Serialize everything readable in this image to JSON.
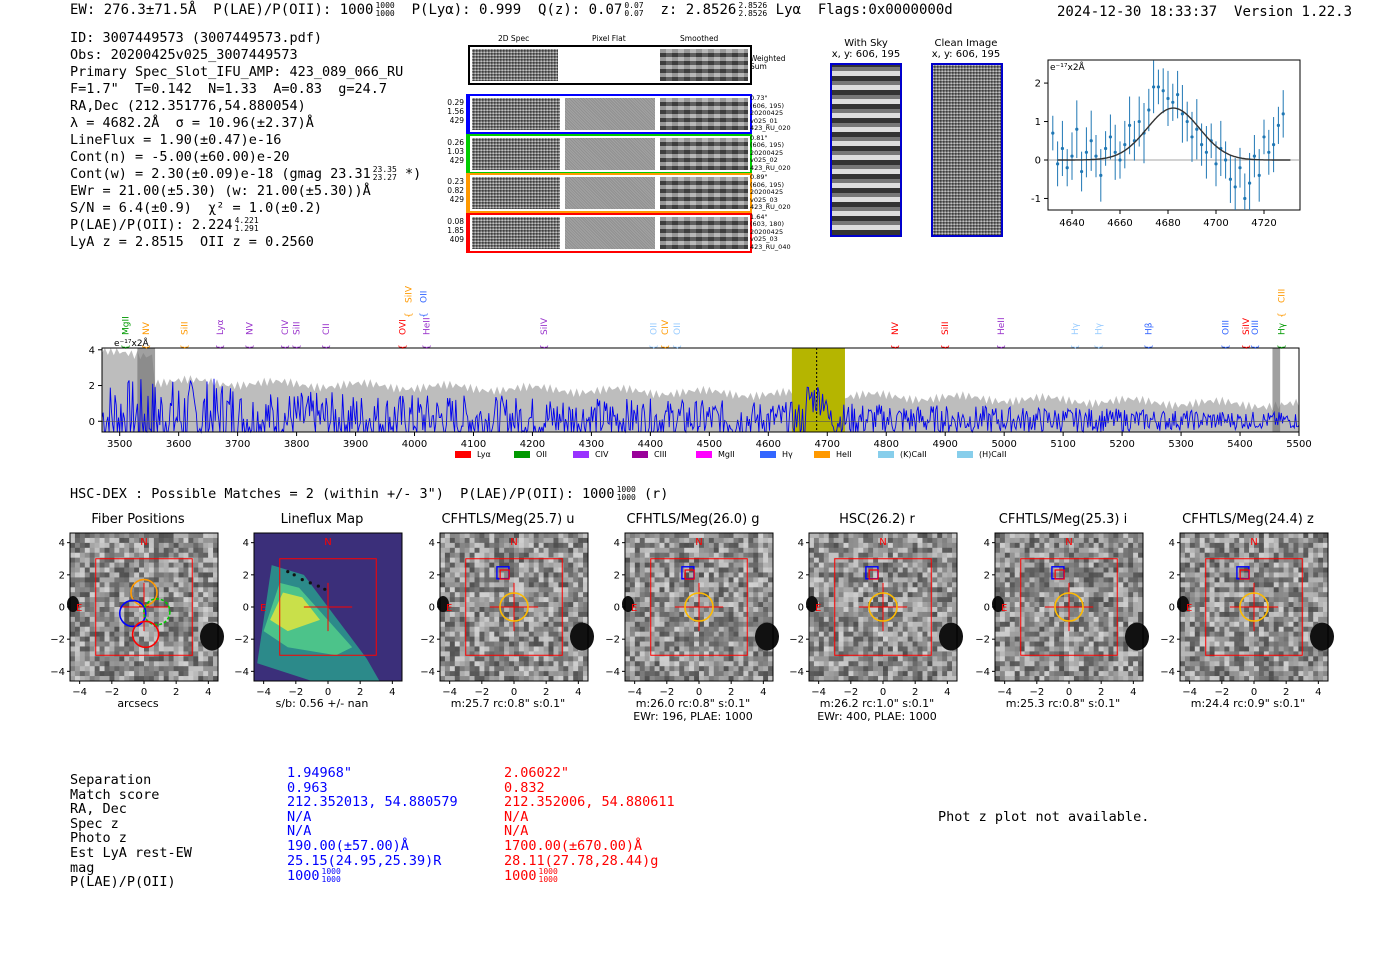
{
  "header": {
    "ew": "EW: 276.3±71.5Å",
    "plae_label": "P(LAE)/P(OII):",
    "plae_val": "1000",
    "plae_hi": "1000",
    "plae_lo": "1000",
    "plya": "P(Lyα): 0.999",
    "qz_label": "Q(z): 0.07",
    "qz_hi": "0.07",
    "qz_lo": "0.07",
    "z_label": "z: 2.8526",
    "z_hi": "2.8526",
    "z_lo": "2.8526",
    "line": "Lyα",
    "flags": "Flags:0x0000000d",
    "datetime": "2024-12-30 18:33:37",
    "version": "Version 1.22.3"
  },
  "info": {
    "id": "ID: 3007449573 (3007449573.pdf)",
    "obs": "Obs: 20200425v025_3007449573",
    "primary": "Primary Spec_Slot_IFU_AMP: 423_089_066_RU",
    "params": "F=1.7\"  T=0.142  N=1.33  A=0.83  g=24.7",
    "radec": "RA,Dec (212.351776,54.880054)",
    "lambda": "λ = 4682.2Å  σ = 10.96(±2.37)Å",
    "lineflux": "LineFlux = 1.90(±0.47)e-16",
    "contn": "Cont(n) = -5.00(±60.00)e-20",
    "contw": "Cont(w) = 2.30(±0.09)e-18 (gmag 23.31",
    "contw_hi": "23.35",
    "contw_lo": "23.27",
    "contw_end": "*)",
    "ewr": "EWr = 21.00(±5.30) (w: 21.00(±5.30))Å",
    "sn": "S/N = 6.4(±0.9)  χ² = 1.0(±0.2)",
    "plae": "P(LAE)/P(OII): 2.224",
    "plae_hi": "4.221",
    "plae_lo": "1.291",
    "z": "LyA z = 2.8515  OII z = 0.2560"
  },
  "spec_panel": {
    "col_2d": "2D Spec",
    "col_flat": "Pixel Flat",
    "col_smooth": "Smoothed",
    "weighted": "Weighted Sum",
    "fibers": [
      {
        "left": [
          "0.29",
          "1.56",
          "429"
        ],
        "right": [
          "0.73\"",
          "(606, 195)",
          "20200425",
          "v025_01",
          "423_RU_020"
        ],
        "color": "#0000ff"
      },
      {
        "left": [
          "0.26",
          "1.03",
          "429"
        ],
        "right": [
          "0.81\"",
          "(606, 195)",
          "20200425",
          "v025_02",
          "423_RU_020"
        ],
        "color": "#00cc00"
      },
      {
        "left": [
          "0.23",
          "0.82",
          "429"
        ],
        "right": [
          "0.89\"",
          "(606, 195)",
          "20200425",
          "v025_03",
          "423_RU_020"
        ],
        "color": "#ff9900"
      },
      {
        "left": [
          "0.08",
          "1.85",
          "409"
        ],
        "right": [
          "1.64\"",
          "(603, 180)",
          "20200425",
          "v025_03",
          "423_RU_040"
        ],
        "color": "#ff0000"
      }
    ],
    "with_sky": "With Sky",
    "with_sky_xy": "x, y: 606, 195",
    "clean": "Clean Image",
    "clean_xy": "x, y: 606, 195"
  },
  "chart_data": [
    {
      "type": "scatter",
      "title": "",
      "ylabel": "e⁻¹⁷x2Å",
      "xlim": [
        4630,
        4735
      ],
      "ylim": [
        -1.3,
        2.6
      ],
      "xticks": [
        4640,
        4660,
        4680,
        4700,
        4720
      ],
      "yticks": [
        -1,
        0,
        1,
        2
      ],
      "points": [
        [
          4632,
          0.7
        ],
        [
          4634,
          -0.1
        ],
        [
          4636,
          0.3
        ],
        [
          4638,
          -0.2
        ],
        [
          4640,
          0.1
        ],
        [
          4642,
          0.8
        ],
        [
          4644,
          -0.3
        ],
        [
          4646,
          0.2
        ],
        [
          4648,
          0.5
        ],
        [
          4650,
          0.1
        ],
        [
          4652,
          -0.4
        ],
        [
          4654,
          0.3
        ],
        [
          4656,
          0.6
        ],
        [
          4658,
          0.2
        ],
        [
          4660,
          0.0
        ],
        [
          4662,
          0.4
        ],
        [
          4664,
          0.9
        ],
        [
          4666,
          0.5
        ],
        [
          4668,
          1.0
        ],
        [
          4670,
          0.7
        ],
        [
          4672,
          1.3
        ],
        [
          4674,
          1.9
        ],
        [
          4676,
          1.9
        ],
        [
          4678,
          1.8
        ],
        [
          4680,
          1.6
        ],
        [
          4682,
          1.5
        ],
        [
          4684,
          1.7
        ],
        [
          4686,
          1.2
        ],
        [
          4688,
          1.0
        ],
        [
          4690,
          0.6
        ],
        [
          4692,
          0.8
        ],
        [
          4694,
          0.4
        ],
        [
          4696,
          0.2
        ],
        [
          4698,
          0.5
        ],
        [
          4700,
          -0.1
        ],
        [
          4702,
          0.3
        ],
        [
          4704,
          0.0
        ],
        [
          4706,
          -0.5
        ],
        [
          4708,
          -0.7
        ],
        [
          4710,
          -0.2
        ],
        [
          4712,
          -1.0
        ],
        [
          4714,
          -0.6
        ],
        [
          4716,
          0.1
        ],
        [
          4718,
          -0.4
        ],
        [
          4720,
          0.6
        ],
        [
          4722,
          0.2
        ],
        [
          4724,
          0.4
        ],
        [
          4726,
          0.9
        ],
        [
          4728,
          1.2
        ]
      ],
      "fit": {
        "amp": 1.35,
        "mu": 4682.2,
        "sigma": 10.96
      }
    },
    {
      "type": "line",
      "title": "",
      "ylabel": "e⁻¹⁷x2Å",
      "xlim": [
        3470,
        5500
      ],
      "ylim": [
        -0.6,
        4.1
      ],
      "xticks": [
        3500,
        3600,
        3700,
        3800,
        3900,
        4000,
        4100,
        4200,
        4300,
        4400,
        4500,
        4600,
        4700,
        4800,
        4900,
        5000,
        5100,
        5200,
        5300,
        5400,
        5500
      ],
      "yticks": [
        0,
        2,
        4
      ],
      "highlight": [
        4640,
        4730
      ],
      "marker": 4682,
      "lines_upper": [
        {
          "name": "SiIV",
          "x": 3990,
          "color": "#ff9900"
        },
        {
          "name": "OII",
          "x": 4015,
          "color": "#3366ff"
        },
        {
          "name": "CIII",
          "x": 5470,
          "color": "#ff9900"
        }
      ],
      "lines_lower": [
        {
          "name": "MgII",
          "x": 3510,
          "color": "#009900"
        },
        {
          "name": "NV",
          "x": 3545,
          "color": "#ff9900"
        },
        {
          "name": "SiII",
          "x": 3610,
          "color": "#ff9900"
        },
        {
          "name": "Lyα",
          "x": 3670,
          "color": "#9933cc"
        },
        {
          "name": "NV",
          "x": 3720,
          "color": "#9933cc"
        },
        {
          "name": "CIV",
          "x": 3780,
          "color": "#9933cc"
        },
        {
          "name": "SiII",
          "x": 3800,
          "color": "#9933cc"
        },
        {
          "name": "CII",
          "x": 3850,
          "color": "#9933cc"
        },
        {
          "name": "OVI",
          "x": 3980,
          "color": "#ff0000"
        },
        {
          "name": "HeII",
          "x": 4020,
          "color": "#9933cc"
        },
        {
          "name": "SiIV",
          "x": 4220,
          "color": "#9933cc"
        },
        {
          "name": "OII",
          "x": 4405,
          "color": "#99ccff"
        },
        {
          "name": "CIV",
          "x": 4425,
          "color": "#ff9900"
        },
        {
          "name": "OII",
          "x": 4445,
          "color": "#99ccff"
        },
        {
          "name": "NV",
          "x": 4815,
          "color": "#ff0000"
        },
        {
          "name": "SiII",
          "x": 4900,
          "color": "#ff0000"
        },
        {
          "name": "HeII",
          "x": 4995,
          "color": "#9933cc"
        },
        {
          "name": "Hγ",
          "x": 5120,
          "color": "#99ccff"
        },
        {
          "name": "Hγ",
          "x": 5160,
          "color": "#99ccff"
        },
        {
          "name": "Hβ",
          "x": 5245,
          "color": "#3366ff"
        },
        {
          "name": "OIII",
          "x": 5375,
          "color": "#3366ff"
        },
        {
          "name": "SiIV",
          "x": 5410,
          "color": "#ff0000"
        },
        {
          "name": "OIII",
          "x": 5425,
          "color": "#3366ff"
        },
        {
          "name": "Hγ",
          "x": 5470,
          "color": "#009900"
        }
      ],
      "legend": [
        {
          "name": "Lyα",
          "color": "#ff0000"
        },
        {
          "name": "OII",
          "color": "#009900"
        },
        {
          "name": "CIV",
          "color": "#9933ff"
        },
        {
          "name": "CIII",
          "color": "#990099"
        },
        {
          "name": "MgII",
          "color": "#ff00ff"
        },
        {
          "name": "Hγ",
          "color": "#3366ff"
        },
        {
          "name": "HeII",
          "color": "#ff9900"
        },
        {
          "name": "(K)CaII",
          "color": "#87ceeb"
        },
        {
          "name": "(H)CaII",
          "color": "#87ceeb"
        }
      ]
    }
  ],
  "hsc": {
    "line": "HSC-DEX : Possible Matches = 2 (within +/- 3\")  P(LAE)/P(OII): 1000",
    "hi": "1000",
    "lo": "1000",
    "end": "(r)"
  },
  "cutouts": [
    {
      "title": "Fiber Positions",
      "cap1": "arcsecs",
      "cap2": "",
      "kind": "fiber"
    },
    {
      "title": "Lineflux Map",
      "cap1": "s/b: 0.56 +/- nan",
      "cap2": "",
      "kind": "flux"
    },
    {
      "title": "CFHTLS/Meg(25.7) u",
      "cap1": "m:25.7 rc:0.8\"  s:0.1\"",
      "cap2": "",
      "kind": "img"
    },
    {
      "title": "CFHTLS/Meg(26.0) g",
      "cap1": "m:26.0 rc:0.8\"  s:0.1\"",
      "cap2": "EWr: 196, PLAE: 1000",
      "kind": "img"
    },
    {
      "title": "HSC(26.2) r",
      "cap1": "m:26.2 rc:1.0\"  s:0.1\"",
      "cap2": "EWr: 400, PLAE: 1000",
      "kind": "img"
    },
    {
      "title": "CFHTLS/Meg(25.3) i",
      "cap1": "m:25.3 rc:0.8\"  s:0.1\"",
      "cap2": "",
      "kind": "img"
    },
    {
      "title": "CFHTLS/Meg(24.4) z",
      "cap1": "m:24.4 rc:0.9\"  s:0.1\"",
      "cap2": "",
      "kind": "img"
    }
  ],
  "cutout_axis": {
    "ticks": [
      "−4",
      "−2",
      "0",
      "2",
      "4"
    ],
    "north": "N",
    "east": "E"
  },
  "matches": {
    "labels": [
      "Separation",
      "Match score",
      "RA, Dec",
      "Spec z",
      "Photo z",
      "Est LyA rest-EW",
      "mag",
      "P(LAE)/P(OII)"
    ],
    "col1": [
      "1.94968\"",
      "0.963",
      "212.352013, 54.880579",
      "N/A",
      "N/A",
      "190.00(±57.00)Å",
      "25.15(24.95,25.39)R",
      "1000"
    ],
    "col2": [
      "2.06022\"",
      "0.832",
      "212.352006, 54.880611",
      "N/A",
      "N/A",
      "1700.00(±670.00)Å",
      "28.11(27.78,28.44)g",
      "1000"
    ],
    "frac_hi": "1000",
    "frac_lo": "1000"
  },
  "photz": "Phot z plot not available."
}
